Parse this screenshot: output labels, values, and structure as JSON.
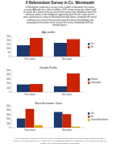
{
  "title": "II Referendum Survey in Co. Westmeath",
  "subtitle": [
    "of Westmeath conducted a survey in late October to determine this creates",
    "a survey. Although not a clinical sample, a 500 county survey was taken to poll",
    "all values. As a check of the accuracy of the survey it was decided to match the",
    "television, political and intelligence apparently result that the same specific",
    "quite satisfactory as a way of checking historically figures, alongside the overall",
    "intentions on a check of the overall survey. A review of methodology and",
    "and graphical illustration of the result of the survey, followed by the more",
    "detailed figures."
  ],
  "annotations": [
    "In the overall socio economic/ gender/ age profile the most surprising and commendable statistic was the strength of",
    "Positive vote in rural areas. The very high female voter satisfaction has been exaggerated by our methodology while the",
    "Positive vote in rural areas. Positive in rural areas."
  ],
  "chart_data": [
    {
      "type": "bar",
      "title": "Age profile",
      "categories": [
        "First cohort",
        "Not cohort"
      ],
      "series": [
        {
          "name": "Yes",
          "color": "#1a3a6e",
          "values": [
            140,
            170
          ]
        },
        {
          "name": "No",
          "color": "#cc2200",
          "values": [
            230,
            215
          ]
        }
      ],
      "ylim": [
        0,
        270
      ],
      "yticks": [
        0,
        50,
        100,
        150,
        200,
        250
      ],
      "grid": false,
      "legend": "right"
    },
    {
      "type": "bar",
      "title": "Gender Profile",
      "categories": [
        "First cohort",
        "Not cohort"
      ],
      "series": [
        {
          "name": "Female",
          "color": "#1a3a6e",
          "values": [
            175,
            135
          ]
        },
        {
          "name": "Undecided",
          "color": "#cc2200",
          "values": [
            185,
            430
          ]
        }
      ],
      "ylim": [
        0,
        500
      ],
      "yticks": [
        0,
        100,
        200,
        300,
        400,
        500
      ],
      "grid": false,
      "legend": "right"
    },
    {
      "type": "bar",
      "title": "Socio Economic Class",
      "categories": [
        "Total cohort",
        "Not cohort"
      ],
      "series": [
        {
          "name": "Yes",
          "color": "#1a3a6e",
          "values": [
            210,
            360
          ]
        },
        {
          "name": "No",
          "color": "#cc2200",
          "values": [
            430,
            310
          ]
        },
        {
          "name": "Undecided millions",
          "color": "#ddaa00",
          "values": [
            55,
            25
          ]
        }
      ],
      "ylim": [
        0,
        500
      ],
      "yticks": [
        0,
        100,
        200,
        300,
        400,
        500
      ],
      "grid": false,
      "legend": "right"
    }
  ]
}
